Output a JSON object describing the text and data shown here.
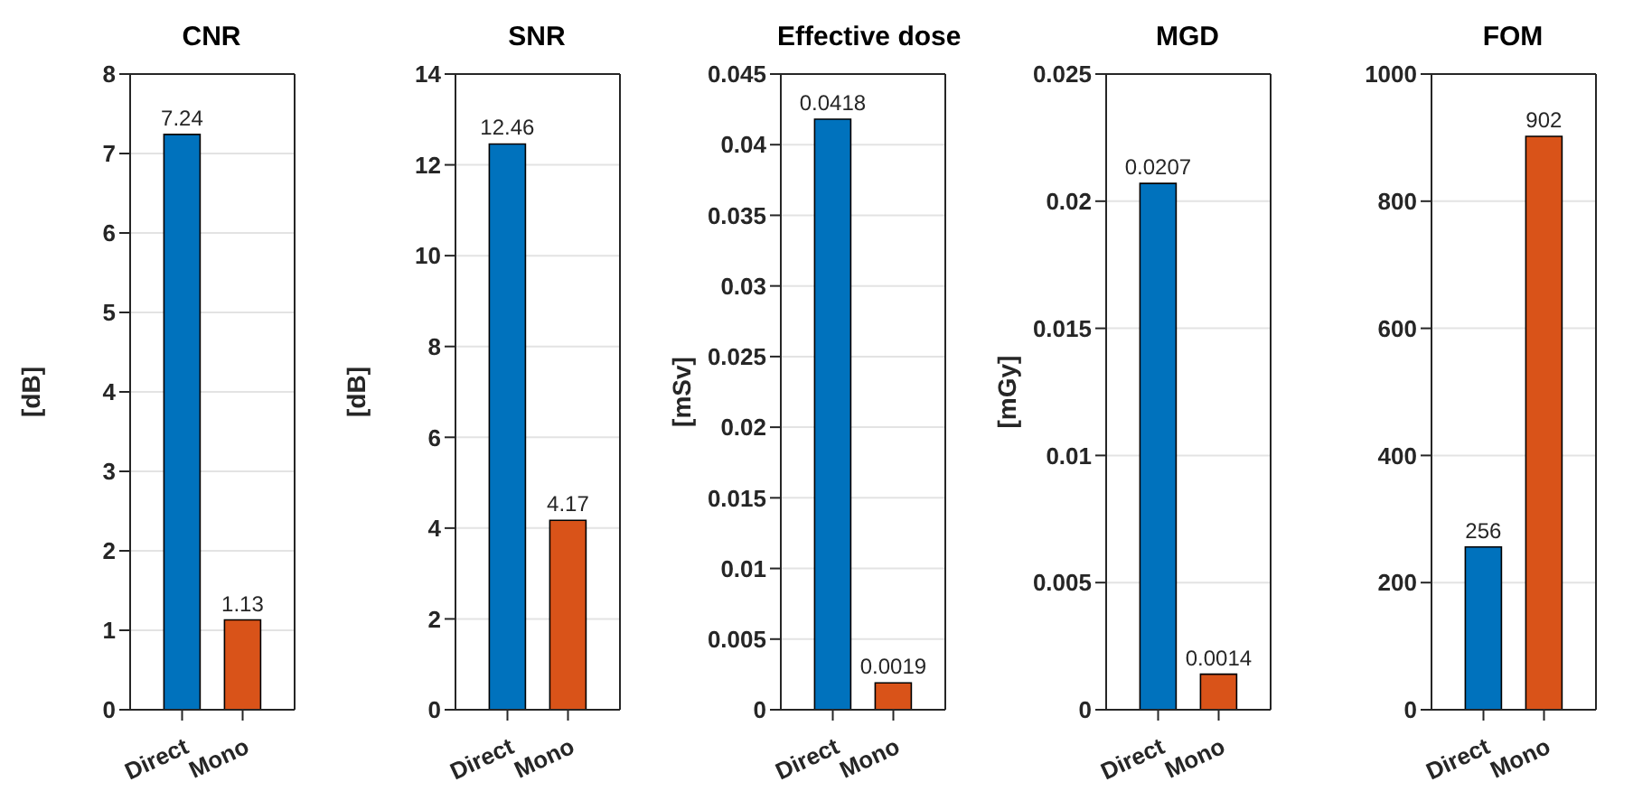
{
  "chart_data": [
    {
      "type": "bar",
      "title": "CNR",
      "ylabel": "[dB]",
      "categories": [
        "Direct",
        "Mono"
      ],
      "values": [
        7.24,
        1.13
      ],
      "colors": [
        "#0072bd",
        "#d95319"
      ],
      "ylim": [
        0,
        8
      ],
      "yticks": [
        0,
        1,
        2,
        3,
        4,
        5,
        6,
        7,
        8
      ],
      "grid": "y",
      "data_labels": true
    },
    {
      "type": "bar",
      "title": "SNR",
      "ylabel": "[dB]",
      "categories": [
        "Direct",
        "Mono"
      ],
      "values": [
        12.46,
        4.17
      ],
      "colors": [
        "#0072bd",
        "#d95319"
      ],
      "ylim": [
        0,
        14
      ],
      "yticks": [
        0,
        2,
        4,
        6,
        8,
        10,
        12,
        14
      ],
      "grid": "y",
      "data_labels": true
    },
    {
      "type": "bar",
      "title": "Effective dose",
      "ylabel": "[mSv]",
      "categories": [
        "Direct",
        "Mono"
      ],
      "values": [
        0.0418,
        0.0019
      ],
      "colors": [
        "#0072bd",
        "#d95319"
      ],
      "ylim": [
        0,
        0.045
      ],
      "yticks": [
        0,
        0.005,
        0.01,
        0.015,
        0.02,
        0.025,
        0.03,
        0.035,
        0.04,
        0.045
      ],
      "grid": "y",
      "data_labels": true
    },
    {
      "type": "bar",
      "title": "MGD",
      "ylabel": "[mGy]",
      "categories": [
        "Direct",
        "Mono"
      ],
      "values": [
        0.0207,
        0.0014
      ],
      "colors": [
        "#0072bd",
        "#d95319"
      ],
      "ylim": [
        0,
        0.025
      ],
      "yticks": [
        0,
        0.005,
        0.01,
        0.015,
        0.02,
        0.025
      ],
      "grid": "y",
      "data_labels": true
    },
    {
      "type": "bar",
      "title": "FOM",
      "categories": [
        "Direct",
        "Mono"
      ],
      "values": [
        256,
        902
      ],
      "colors": [
        "#0072bd",
        "#d95319"
      ],
      "ylim": [
        0,
        1000
      ],
      "yticks": [
        0,
        200,
        400,
        600,
        800,
        1000
      ],
      "grid": "y",
      "data_labels": true
    }
  ]
}
